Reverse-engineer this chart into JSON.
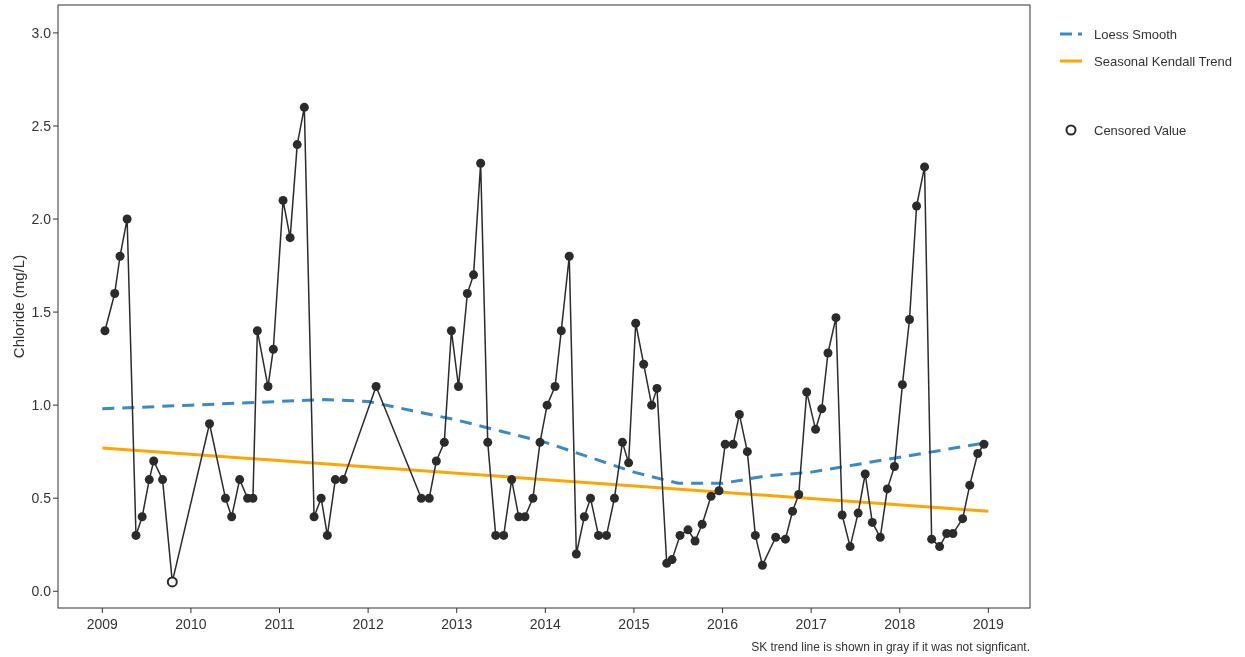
{
  "chart_data": {
    "type": "line",
    "ylabel": "Chloride (mg/L)",
    "xlim": [
      2008.5,
      2019.47
    ],
    "ylim": [
      -0.09,
      3.15
    ],
    "xticks": [
      2009,
      2010,
      2011,
      2012,
      2013,
      2014,
      2015,
      2016,
      2017,
      2018,
      2019
    ],
    "yticks": [
      {
        "value": 0,
        "label": "0.0"
      },
      {
        "value": 0.5,
        "label": "0.5"
      },
      {
        "value": 1,
        "label": "1.0"
      },
      {
        "value": 1.5,
        "label": "1.5"
      },
      {
        "value": 2,
        "label": "2.0"
      },
      {
        "value": 2.5,
        "label": "2.5"
      },
      {
        "value": 3,
        "label": "3.0"
      }
    ],
    "grid": false,
    "legend": "right",
    "annotations": [
      "SK trend line is shown in gray if it was not signficant."
    ],
    "series": [
      {
        "color": "#2b2b2b",
        "marker": "circle",
        "line_style": "solid",
        "x": [
          2009.03,
          2009.14,
          2009.2,
          2009.28,
          2009.38,
          2009.45,
          2009.53,
          2009.58,
          2009.68,
          2009.79,
          2010.21,
          2010.39,
          2010.46,
          2010.55,
          2010.64,
          2010.7,
          2010.75,
          2010.87,
          2010.93,
          2011.04,
          2011.12,
          2011.2,
          2011.28,
          2011.39,
          2011.47,
          2011.54,
          2011.63,
          2011.72,
          2012.09,
          2012.6,
          2012.69,
          2012.77,
          2012.86,
          2012.94,
          2013.02,
          2013.12,
          2013.19,
          2013.27,
          2013.35,
          2013.44,
          2013.53,
          2013.62,
          2013.7,
          2013.77,
          2013.86,
          2013.94,
          2014.02,
          2014.11,
          2014.18,
          2014.27,
          2014.35,
          2014.44,
          2014.51,
          2014.6,
          2014.69,
          2014.78,
          2014.87,
          2014.94,
          2015.02,
          2015.11,
          2015.2,
          2015.26,
          2015.37,
          2015.43,
          2015.52,
          2015.61,
          2015.69,
          2015.77,
          2015.87,
          2015.96,
          2016.03,
          2016.12,
          2016.19,
          2016.28,
          2016.37,
          2016.45,
          2016.6,
          2016.71,
          2016.79,
          2016.86,
          2016.95,
          2017.05,
          2017.12,
          2017.19,
          2017.28,
          2017.35,
          2017.44,
          2017.53,
          2017.61,
          2017.69,
          2017.78,
          2017.86,
          2017.94,
          2018.03,
          2018.11,
          2018.19,
          2018.28,
          2018.36,
          2018.45,
          2018.53,
          2018.6,
          2018.71,
          2018.79,
          2018.88,
          2018.95
        ],
        "values": [
          1.4,
          1.6,
          1.8,
          2.0,
          0.3,
          0.4,
          0.6,
          0.7,
          0.6,
          0.05,
          0.9,
          0.5,
          0.4,
          0.6,
          0.5,
          0.5,
          1.4,
          1.1,
          1.3,
          2.1,
          1.9,
          2.4,
          2.6,
          0.4,
          0.5,
          0.3,
          0.6,
          0.6,
          1.1,
          0.5,
          0.5,
          0.7,
          0.8,
          1.4,
          1.1,
          1.6,
          1.7,
          2.3,
          0.8,
          0.3,
          0.3,
          0.6,
          0.4,
          0.4,
          0.5,
          0.8,
          1.0,
          1.1,
          1.4,
          1.8,
          0.2,
          0.4,
          0.5,
          0.3,
          0.3,
          0.5,
          0.8,
          0.69,
          1.44,
          1.22,
          1.0,
          1.09,
          0.15,
          0.17,
          0.3,
          0.33,
          0.27,
          0.36,
          0.51,
          0.54,
          0.79,
          0.79,
          0.95,
          0.75,
          0.3,
          0.14,
          0.29,
          0.28,
          0.43,
          0.52,
          1.07,
          0.87,
          0.98,
          1.28,
          1.47,
          0.41,
          0.24,
          0.42,
          0.63,
          0.37,
          0.29,
          0.55,
          0.67,
          1.11,
          1.46,
          2.07,
          2.28,
          0.28,
          0.24,
          0.31,
          0.31,
          0.39,
          0.57,
          0.74,
          0.79
        ]
      },
      {
        "name": "Loess Smooth",
        "color": "#3a8ac8",
        "marker": "none",
        "line_style": "dashed",
        "x": [
          2009,
          2010,
          2011,
          2011.5,
          2012,
          2012.5,
          2013,
          2013.5,
          2014,
          2014.5,
          2015,
          2015.5,
          2016,
          2016.5,
          2017,
          2017.5,
          2018,
          2018.5,
          2019
        ],
        "values": [
          0.98,
          1.0,
          1.02,
          1.03,
          1.02,
          0.97,
          0.92,
          0.86,
          0.8,
          0.72,
          0.64,
          0.58,
          0.58,
          0.62,
          0.64,
          0.68,
          0.72,
          0.76,
          0.8
        ]
      },
      {
        "name": "Seasonal Kendall Trend",
        "color": "#ffa500",
        "marker": "none",
        "line_style": "solid",
        "x": [
          2009,
          2019
        ],
        "values": [
          0.77,
          0.43
        ]
      },
      {
        "type": "scatter",
        "name": "Censored Value",
        "color": "#2b2b2b",
        "marker": "circle",
        "x": [
          2009.79
        ],
        "values": [
          0.05
        ]
      }
    ]
  }
}
